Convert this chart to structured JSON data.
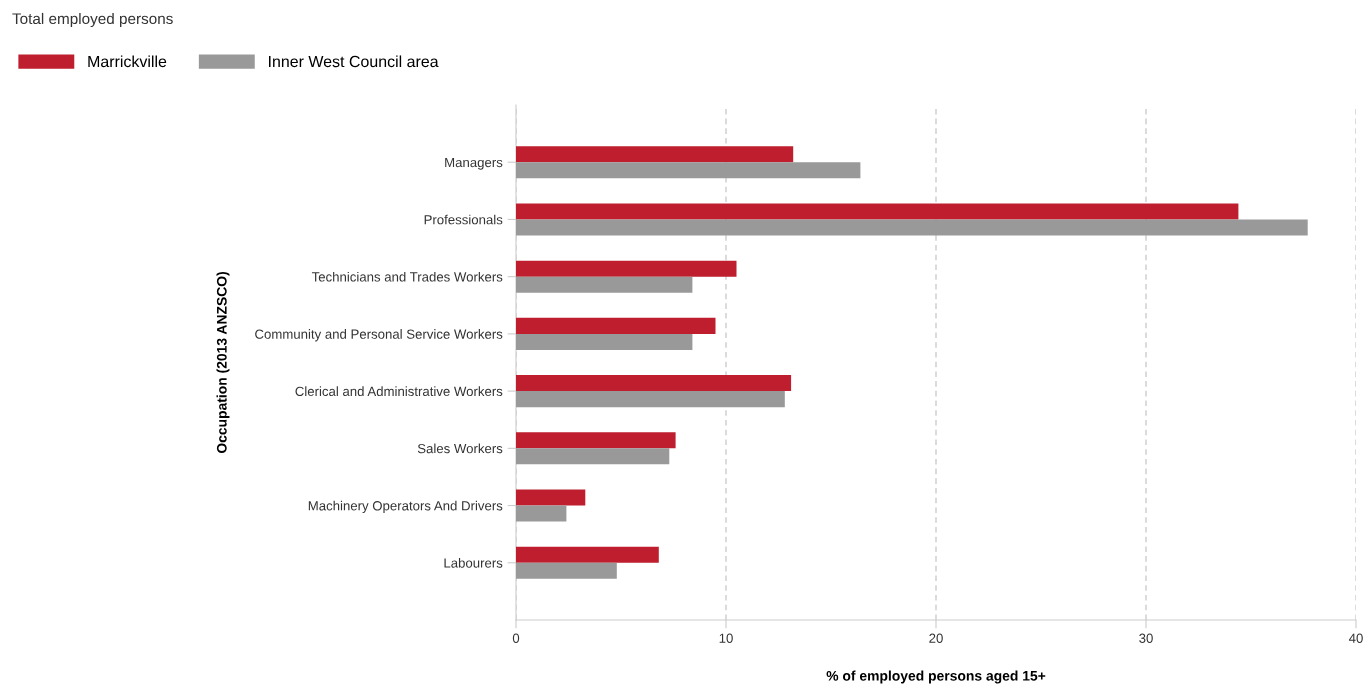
{
  "chart_data": {
    "type": "bar",
    "orientation": "horizontal",
    "title": "Total employed persons",
    "xlabel": "% of employed persons aged 15+",
    "ylabel": "Occupation (2013 ANZSCO)",
    "categories": [
      "Managers",
      "Professionals",
      "Technicians and Trades Workers",
      "Community and Personal Service Workers",
      "Clerical and Administrative Workers",
      "Sales Workers",
      "Machinery Operators And Drivers",
      "Labourers"
    ],
    "series": [
      {
        "name": "Marrickville",
        "color": "#be1e2d",
        "values": [
          13.2,
          34.4,
          10.5,
          9.5,
          13.1,
          7.6,
          3.3,
          6.8
        ]
      },
      {
        "name": "Inner West Council area",
        "color": "#999999",
        "values": [
          16.4,
          37.7,
          8.4,
          8.4,
          12.8,
          7.3,
          2.4,
          4.8
        ]
      }
    ],
    "xlim": [
      0,
      40
    ],
    "xticks": [
      0,
      10,
      20,
      30,
      40
    ],
    "grid": "x",
    "legend": "top left"
  }
}
